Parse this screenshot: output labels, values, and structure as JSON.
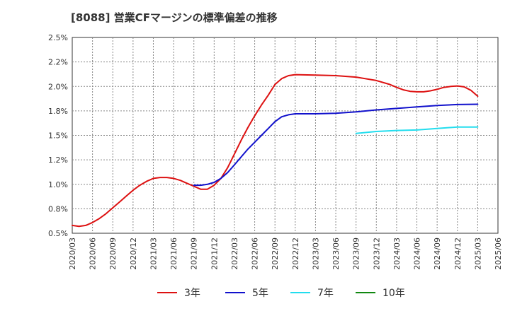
{
  "chart_data": {
    "type": "line",
    "title": "[8088]  営業CFマージンの標準偏差の推移",
    "xlabel": "",
    "ylabel": "",
    "ylim": [
      0.5,
      2.5
    ],
    "y_ticks": [
      "0.5%",
      "0.8%",
      "1.0%",
      "1.2%",
      "1.5%",
      "1.8%",
      "2.0%",
      "2.2%",
      "2.5%"
    ],
    "x_ticks": [
      "2020/03",
      "2020/06",
      "2020/09",
      "2020/12",
      "2021/03",
      "2021/06",
      "2021/09",
      "2021/12",
      "2022/03",
      "2022/06",
      "2022/09",
      "2022/12",
      "2023/03",
      "2023/06",
      "2023/09",
      "2023/12",
      "2024/03",
      "2024/06",
      "2024/09",
      "2024/12",
      "2025/03",
      "2025/06"
    ],
    "grid": true,
    "legend_position": "bottom",
    "series": [
      {
        "name": "3年",
        "color": "#dd1111",
        "points": [
          [
            "2020/03",
            0.58
          ],
          [
            "2020/04",
            0.57
          ],
          [
            "2020/05",
            0.58
          ],
          [
            "2020/06",
            0.61
          ],
          [
            "2020/07",
            0.65
          ],
          [
            "2020/08",
            0.7
          ],
          [
            "2020/09",
            0.76
          ],
          [
            "2020/10",
            0.82
          ],
          [
            "2020/11",
            0.88
          ],
          [
            "2020/12",
            0.94
          ],
          [
            "2021/01",
            0.99
          ],
          [
            "2021/02",
            1.03
          ],
          [
            "2021/03",
            1.06
          ],
          [
            "2021/04",
            1.07
          ],
          [
            "2021/05",
            1.07
          ],
          [
            "2021/06",
            1.06
          ],
          [
            "2021/07",
            1.04
          ],
          [
            "2021/08",
            1.01
          ],
          [
            "2021/09",
            0.98
          ],
          [
            "2021/10",
            0.95
          ],
          [
            "2021/11",
            0.95
          ],
          [
            "2021/12",
            0.99
          ],
          [
            "2022/01",
            1.06
          ],
          [
            "2022/02",
            1.17
          ],
          [
            "2022/03",
            1.31
          ],
          [
            "2022/04",
            1.45
          ],
          [
            "2022/05",
            1.58
          ],
          [
            "2022/06",
            1.7
          ],
          [
            "2022/07",
            1.81
          ],
          [
            "2022/08",
            1.91
          ],
          [
            "2022/09",
            2.02
          ],
          [
            "2022/10",
            2.08
          ],
          [
            "2022/11",
            2.11
          ],
          [
            "2022/12",
            2.12
          ],
          [
            "2023/03",
            2.115
          ],
          [
            "2023/06",
            2.11
          ],
          [
            "2023/09",
            2.095
          ],
          [
            "2023/12",
            2.06
          ],
          [
            "2024/02",
            2.02
          ],
          [
            "2024/03",
            1.99
          ],
          [
            "2024/04",
            1.965
          ],
          [
            "2024/05",
            1.95
          ],
          [
            "2024/06",
            1.945
          ],
          [
            "2024/07",
            1.945
          ],
          [
            "2024/08",
            1.955
          ],
          [
            "2024/09",
            1.97
          ],
          [
            "2024/10",
            1.99
          ],
          [
            "2024/11",
            2.0
          ],
          [
            "2024/12",
            2.005
          ],
          [
            "2025/01",
            1.995
          ],
          [
            "2025/02",
            1.96
          ],
          [
            "2025/03",
            1.9
          ]
        ]
      },
      {
        "name": "5年",
        "color": "#1111cc",
        "points": [
          [
            "2021/09",
            0.99
          ],
          [
            "2021/10",
            0.99
          ],
          [
            "2021/11",
            1.0
          ],
          [
            "2021/12",
            1.02
          ],
          [
            "2022/01",
            1.06
          ],
          [
            "2022/02",
            1.12
          ],
          [
            "2022/03",
            1.2
          ],
          [
            "2022/04",
            1.28
          ],
          [
            "2022/05",
            1.36
          ],
          [
            "2022/06",
            1.43
          ],
          [
            "2022/07",
            1.5
          ],
          [
            "2022/08",
            1.57
          ],
          [
            "2022/09",
            1.64
          ],
          [
            "2022/10",
            1.69
          ],
          [
            "2022/11",
            1.71
          ],
          [
            "2022/12",
            1.72
          ],
          [
            "2023/03",
            1.72
          ],
          [
            "2023/06",
            1.725
          ],
          [
            "2023/09",
            1.74
          ],
          [
            "2023/12",
            1.76
          ],
          [
            "2024/03",
            1.775
          ],
          [
            "2024/06",
            1.79
          ],
          [
            "2024/09",
            1.805
          ],
          [
            "2024/12",
            1.815
          ],
          [
            "2025/03",
            1.818
          ]
        ]
      },
      {
        "name": "7年",
        "color": "#22ddee",
        "points": [
          [
            "2023/09",
            1.52
          ],
          [
            "2023/12",
            1.54
          ],
          [
            "2024/03",
            1.55
          ],
          [
            "2024/06",
            1.555
          ],
          [
            "2024/09",
            1.57
          ],
          [
            "2024/12",
            1.585
          ],
          [
            "2025/03",
            1.585
          ]
        ]
      },
      {
        "name": "10年",
        "color": "#118811",
        "points": []
      }
    ]
  }
}
